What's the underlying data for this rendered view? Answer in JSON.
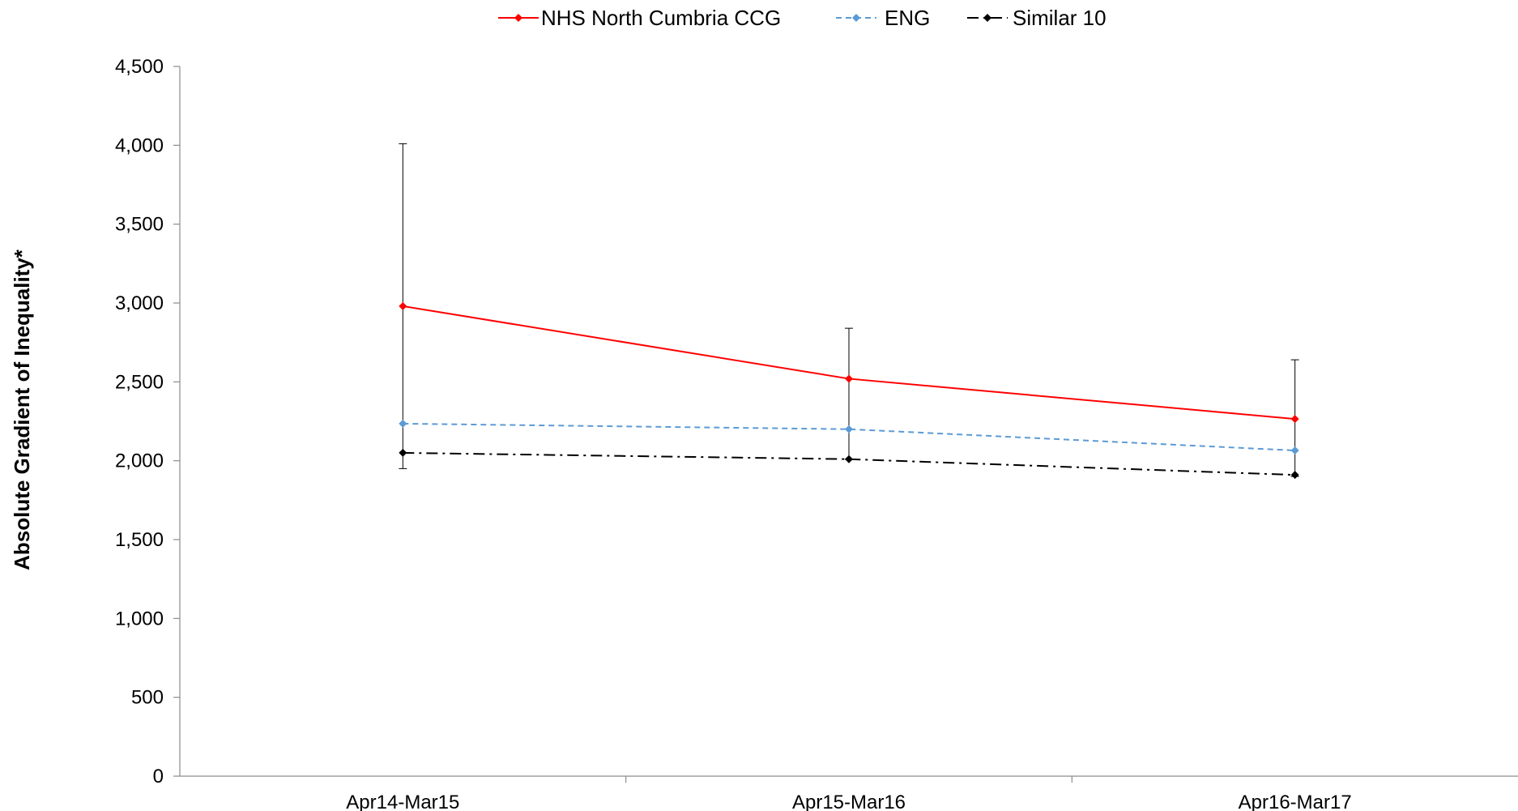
{
  "chart_data": {
    "type": "line",
    "title": "",
    "xlabel": "",
    "ylabel": "Absolute Gradient of Inequality*",
    "categories": [
      "Apr14-Mar15",
      "Apr15-Mar16",
      "Apr16-Mar17"
    ],
    "ylim": [
      0,
      4500
    ],
    "yticks": [
      0,
      500,
      1000,
      1500,
      2000,
      2500,
      3000,
      3500,
      4000,
      4500
    ],
    "ytick_labels": [
      "0",
      "500",
      "1,000",
      "1,500",
      "2,000",
      "2,500",
      "3,000",
      "3,500",
      "4,000",
      "4,500"
    ],
    "grid": false,
    "legend_position": "top-center",
    "series": [
      {
        "name": "NHS North Cumbria CCG",
        "values": [
          2980,
          2520,
          2265
        ],
        "error_low": [
          1950,
          2010,
          1900
        ],
        "error_high": [
          4010,
          2840,
          2640
        ],
        "color": "#ff0000",
        "line_style": "solid",
        "marker": "diamond"
      },
      {
        "name": "ENG",
        "values": [
          2235,
          2200,
          2065
        ],
        "color": "#5b9bd5",
        "line_style": "dashed",
        "marker": "diamond"
      },
      {
        "name": "Similar 10",
        "values": [
          2050,
          2010,
          1910
        ],
        "color": "#000000",
        "line_style": "dash-dot",
        "marker": "diamond"
      }
    ]
  }
}
